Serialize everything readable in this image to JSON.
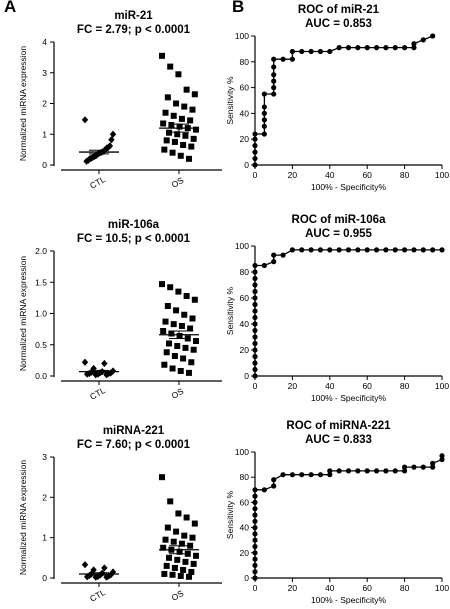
{
  "panel_labels": {
    "left": "A",
    "right": "B"
  },
  "chart_data": [
    {
      "type": "scatter",
      "title": "miR-21",
      "subtitle": "FC = 2.79; p < 0.0001",
      "xlabel": "",
      "ylabel": "Normalized miRNA expression",
      "categories": [
        "CTL",
        "OS"
      ],
      "ylim": [
        0,
        4
      ],
      "yticks": [
        0,
        1,
        2,
        3,
        4
      ],
      "ytick_labels": [
        "0",
        "1",
        "2",
        "3",
        "4"
      ],
      "grid": false,
      "series": [
        {
          "category": "CTL",
          "marker": "diamond",
          "mean": 0.42,
          "sem": 0.06,
          "values": [
            1.47,
            1.0,
            0.82,
            0.62,
            0.58,
            0.55,
            0.5,
            0.45,
            0.42,
            0.4,
            0.38,
            0.35,
            0.3,
            0.28,
            0.25,
            0.22,
            0.2,
            0.15,
            0.12
          ]
        },
        {
          "category": "OS",
          "marker": "square",
          "mean": 1.2,
          "sem": 0.13,
          "values": [
            3.55,
            3.2,
            2.95,
            2.45,
            2.3,
            2.2,
            2.0,
            1.9,
            1.8,
            1.7,
            1.6,
            1.5,
            1.45,
            1.35,
            1.3,
            1.25,
            1.2,
            1.15,
            1.05,
            1.0,
            0.95,
            0.85,
            0.8,
            0.75,
            0.65,
            0.6,
            0.5,
            0.4,
            0.3,
            0.2
          ]
        }
      ]
    },
    {
      "type": "line",
      "title": "ROC of miR-21",
      "subtitle": "AUC = 0.853",
      "xlabel": "100% - Specificity%",
      "ylabel": "Sensitivity %",
      "xlim": [
        0,
        100
      ],
      "ylim": [
        0,
        100
      ],
      "xticks": [
        0,
        20,
        40,
        60,
        80,
        100
      ],
      "yticks": [
        0,
        20,
        40,
        60,
        80,
        100
      ],
      "grid": false,
      "x": [
        0,
        0,
        0,
        0,
        0,
        0,
        5,
        5,
        5,
        5,
        5,
        5,
        10,
        10,
        10,
        10,
        10,
        10,
        15,
        20,
        20,
        25,
        30,
        35,
        40,
        45,
        50,
        55,
        60,
        65,
        70,
        75,
        80,
        85,
        85,
        90,
        95
      ],
      "y": [
        0,
        5,
        10,
        15,
        20,
        24,
        24,
        30,
        35,
        40,
        45,
        55,
        55,
        60,
        65,
        70,
        76,
        82,
        82,
        82,
        88,
        88,
        88,
        88,
        88,
        91,
        91,
        91,
        91,
        91,
        91,
        91,
        91,
        91,
        94,
        97,
        100
      ]
    },
    {
      "type": "scatter",
      "title": "miR-106a",
      "subtitle": "FC = 10.5; p < 0.0001",
      "xlabel": "",
      "ylabel": "Normalized miRNA expression",
      "categories": [
        "CTL",
        "OS"
      ],
      "ylim": [
        0,
        2.0
      ],
      "yticks": [
        0,
        0.5,
        1.0,
        1.5,
        2.0
      ],
      "ytick_labels": [
        "0.0",
        "0.5",
        "1.0",
        "1.5",
        "2.0"
      ],
      "grid": false,
      "series": [
        {
          "category": "CTL",
          "marker": "diamond",
          "mean": 0.07,
          "sem": 0.02,
          "values": [
            0.22,
            0.2,
            0.12,
            0.08,
            0.07,
            0.06,
            0.05,
            0.05,
            0.04,
            0.04,
            0.03,
            0.03,
            0.02,
            0.02
          ]
        },
        {
          "category": "OS",
          "marker": "square",
          "mean": 0.66,
          "sem": 0.06,
          "values": [
            1.47,
            1.42,
            1.35,
            1.28,
            1.22,
            1.12,
            1.05,
            0.98,
            0.92,
            0.87,
            0.83,
            0.8,
            0.76,
            0.72,
            0.68,
            0.64,
            0.6,
            0.56,
            0.52,
            0.48,
            0.45,
            0.42,
            0.38,
            0.32,
            0.28,
            0.22,
            0.18,
            0.12,
            0.08,
            0.05
          ]
        }
      ]
    },
    {
      "type": "line",
      "title": "ROC of miR-106a",
      "subtitle": "AUC = 0.955",
      "xlabel": "100% - Specificity%",
      "ylabel": "Sensitivity %",
      "xlim": [
        0,
        100
      ],
      "ylim": [
        0,
        100
      ],
      "xticks": [
        0,
        20,
        40,
        60,
        80,
        100
      ],
      "yticks": [
        0,
        20,
        40,
        60,
        80,
        100
      ],
      "grid": false,
      "x": [
        0,
        0,
        0,
        0,
        0,
        0,
        0,
        0,
        0,
        0,
        0,
        0,
        0,
        0,
        0,
        0,
        0,
        0,
        5,
        10,
        10,
        15,
        20,
        25,
        30,
        35,
        40,
        45,
        50,
        55,
        60,
        65,
        70,
        75,
        80,
        85,
        90,
        95,
        100
      ],
      "y": [
        0,
        5,
        10,
        15,
        20,
        25,
        30,
        35,
        40,
        45,
        50,
        55,
        60,
        65,
        70,
        75,
        80,
        85,
        85,
        88,
        93,
        93,
        97,
        97,
        97,
        97,
        97,
        97,
        97,
        97,
        97,
        97,
        97,
        97,
        97,
        97,
        97,
        97,
        97
      ]
    },
    {
      "type": "scatter",
      "title": "miRNA-221",
      "subtitle": "FC = 7.60; p < 0.0001",
      "xlabel": "",
      "ylabel": "Normalized miRNA expression",
      "categories": [
        "CTL",
        "OS"
      ],
      "ylim": [
        0,
        3
      ],
      "yticks": [
        0,
        1,
        2,
        3
      ],
      "ytick_labels": [
        "0",
        "1",
        "2",
        "3"
      ],
      "grid": false,
      "series": [
        {
          "category": "CTL",
          "marker": "diamond",
          "mean": 0.1,
          "sem": 0.03,
          "values": [
            0.33,
            0.25,
            0.2,
            0.15,
            0.12,
            0.1,
            0.08,
            0.07,
            0.06,
            0.05,
            0.04,
            0.03,
            0.02,
            0.02
          ]
        },
        {
          "category": "OS",
          "marker": "square",
          "mean": 0.7,
          "sem": 0.1,
          "values": [
            2.5,
            1.9,
            1.6,
            1.5,
            1.35,
            1.25,
            1.15,
            1.05,
            1.0,
            0.95,
            0.9,
            0.85,
            0.8,
            0.75,
            0.7,
            0.65,
            0.6,
            0.55,
            0.5,
            0.45,
            0.4,
            0.35,
            0.3,
            0.25,
            0.2,
            0.15,
            0.1,
            0.08,
            0.05,
            0.03
          ]
        }
      ]
    },
    {
      "type": "line",
      "title": "ROC of miRNA-221",
      "subtitle": "AUC = 0.833",
      "xlabel": "100% - Specificity%",
      "ylabel": "Sensitivity %",
      "xlim": [
        0,
        100
      ],
      "ylim": [
        0,
        100
      ],
      "xticks": [
        0,
        20,
        40,
        60,
        80,
        100
      ],
      "yticks": [
        0,
        20,
        40,
        60,
        80,
        100
      ],
      "grid": false,
      "x": [
        0,
        0,
        0,
        0,
        0,
        0,
        0,
        0,
        0,
        0,
        0,
        0,
        0,
        0,
        0,
        5,
        10,
        10,
        15,
        20,
        25,
        30,
        35,
        40,
        40,
        45,
        50,
        55,
        60,
        65,
        70,
        75,
        80,
        80,
        85,
        90,
        95,
        95,
        100,
        100
      ],
      "y": [
        0,
        5,
        10,
        15,
        20,
        25,
        30,
        35,
        40,
        45,
        50,
        55,
        60,
        65,
        70,
        70,
        73,
        78,
        82,
        82,
        82,
        82,
        82,
        82,
        85,
        85,
        85,
        85,
        85,
        85,
        85,
        85,
        85,
        88,
        88,
        88,
        88,
        91,
        94,
        97
      ]
    }
  ]
}
